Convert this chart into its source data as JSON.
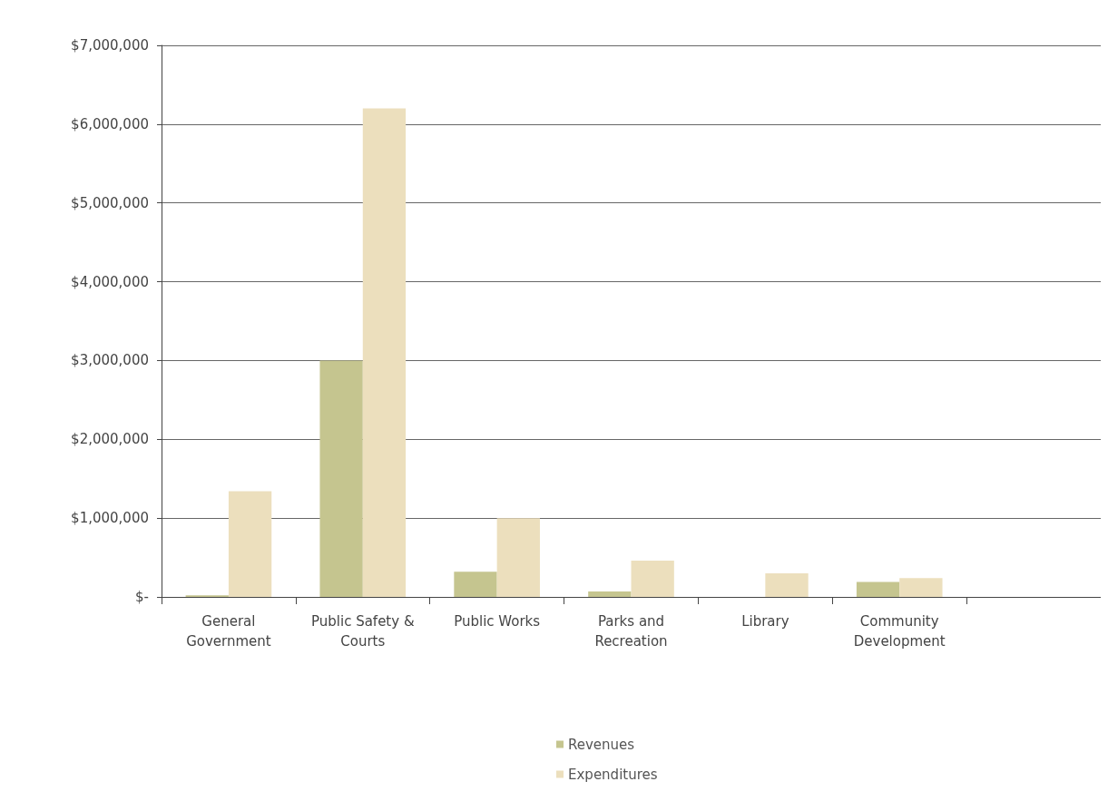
{
  "chart_data": {
    "type": "bar",
    "categories": [
      "General\nGovernment",
      "Public Safety &\nCourts",
      "Public Works",
      "Parks and\nRecreation",
      "Library",
      "Community\nDevelopment",
      null
    ],
    "series": [
      {
        "name": "Revenues",
        "color": "#c5c58f",
        "values": [
          20000,
          3000000,
          320000,
          70000,
          0,
          190000,
          null
        ]
      },
      {
        "name": "Expenditures",
        "color": "#ecdfbd",
        "values": [
          1340000,
          6200000,
          1000000,
          460000,
          300000,
          240000,
          null
        ]
      }
    ],
    "ylim": [
      0,
      7000000
    ],
    "yticks": [
      {
        "value": 0,
        "label": "$-"
      },
      {
        "value": 1000000,
        "label": "$1,000,000"
      },
      {
        "value": 2000000,
        "label": "$2,000,000"
      },
      {
        "value": 3000000,
        "label": "$3,000,000"
      },
      {
        "value": 4000000,
        "label": "$4,000,000"
      },
      {
        "value": 5000000,
        "label": "$5,000,000"
      },
      {
        "value": 6000000,
        "label": "$6,000,000"
      },
      {
        "value": 7000000,
        "label": "$7,000,000"
      }
    ],
    "grid": "y",
    "legend": "bottom"
  }
}
